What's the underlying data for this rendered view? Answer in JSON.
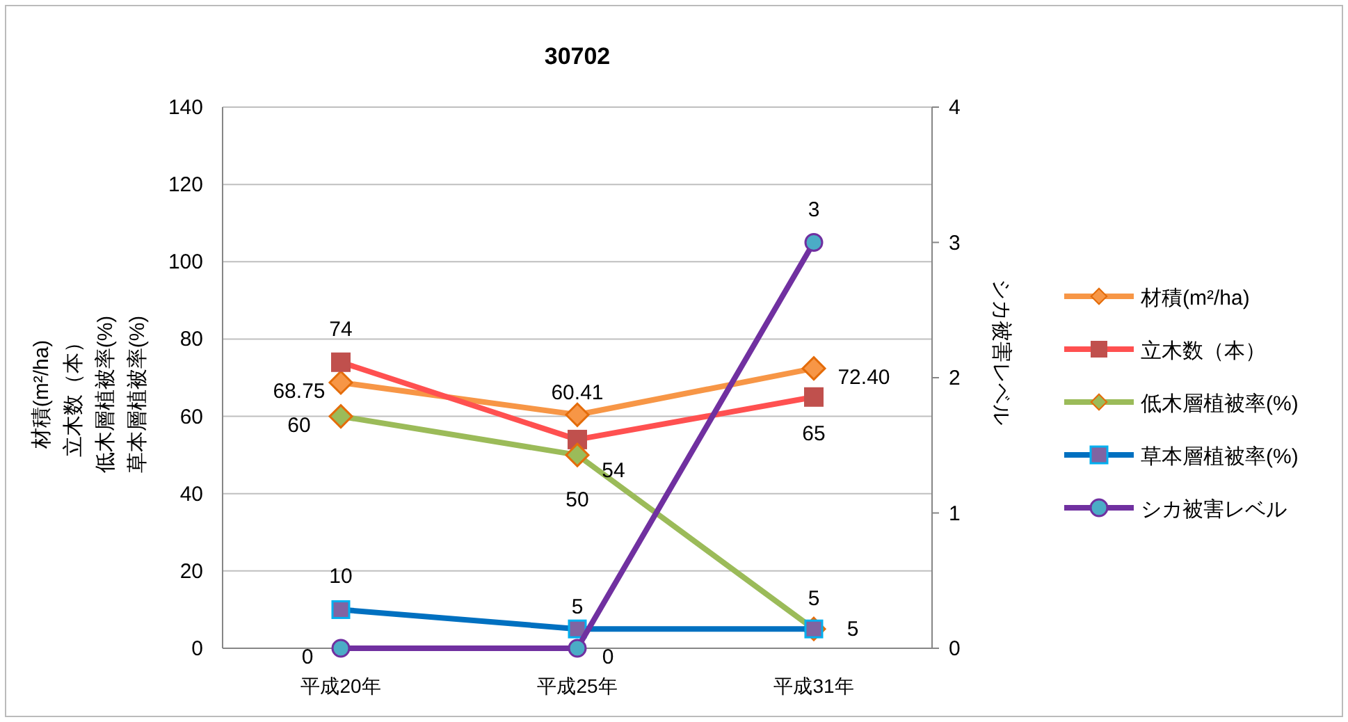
{
  "chart_data": {
    "type": "line",
    "title": "30702",
    "ylabel": [
      "材積(m²/ha)",
      "立木数（本）",
      "低木層植被率(%)",
      "草本層植被率(%)"
    ],
    "y2label": "シカ被害レベル",
    "categories": [
      "平成20年",
      "平成25年",
      "平成31年"
    ],
    "ylim": [
      0,
      140
    ],
    "yticks": [
      0,
      20,
      40,
      60,
      80,
      100,
      120,
      140
    ],
    "y2lim": [
      0,
      4
    ],
    "y2ticks": [
      0,
      1,
      2,
      3,
      4
    ],
    "grid": "y",
    "legend": "right",
    "series": [
      {
        "name": "材積(m²/ha)",
        "color": "#f79646",
        "marker": "diamond",
        "values": [
          68.75,
          60.41,
          72.4
        ],
        "value_labels": [
          "68.75",
          "60.41",
          "72.40"
        ]
      },
      {
        "name": "立木数（本）",
        "color": "#ff5050",
        "marker": "square",
        "values": [
          74,
          54,
          65
        ],
        "value_labels": [
          "74",
          "54",
          "65"
        ]
      },
      {
        "name": "低木層植被率(%)",
        "color": "#9bbb59",
        "marker": "diamond",
        "values": [
          60,
          50,
          5
        ],
        "value_labels": [
          "60",
          "50",
          "5"
        ]
      },
      {
        "name": "草本層植被率(%)",
        "color": "#0070c0",
        "marker": "square",
        "values": [
          10,
          5,
          5
        ],
        "value_labels": [
          "10",
          "5",
          "5"
        ]
      },
      {
        "name": "シカ被害レベル",
        "color": "#7030a0",
        "marker": "circle",
        "axis": "y2",
        "values": [
          0,
          0,
          3
        ],
        "value_labels": [
          "0",
          "0",
          "3"
        ]
      }
    ]
  }
}
